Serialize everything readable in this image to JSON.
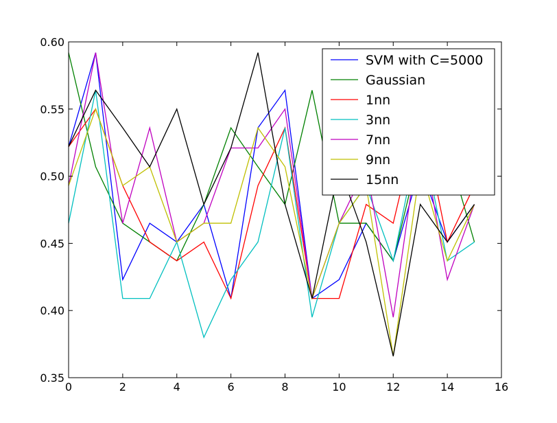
{
  "chart_data": {
    "type": "line",
    "title": "",
    "xlabel": "",
    "ylabel": "",
    "xlim": [
      0,
      16
    ],
    "ylim": [
      0.35,
      0.6
    ],
    "x_ticks": [
      0,
      2,
      4,
      6,
      8,
      10,
      12,
      14,
      16
    ],
    "x_tick_labels": [
      "0",
      "2",
      "4",
      "6",
      "8",
      "10",
      "12",
      "14",
      "16"
    ],
    "y_ticks": [
      0.35,
      0.4,
      0.45,
      0.5,
      0.55,
      0.6
    ],
    "y_tick_labels": [
      "0.35",
      "0.40",
      "0.45",
      "0.50",
      "0.55",
      "0.60"
    ],
    "grid": false,
    "legend_position": "top-right",
    "x": [
      0,
      1,
      2,
      3,
      4,
      5,
      6,
      7,
      8,
      9,
      10,
      11,
      12,
      13,
      14,
      15
    ],
    "series": [
      {
        "name": "SVM with C=5000",
        "color": "#0000ff",
        "values": [
          0.522,
          0.592,
          0.423,
          0.465,
          0.451,
          0.479,
          0.409,
          0.536,
          0.564,
          0.409,
          0.423,
          0.465,
          0.437,
          0.507,
          0.451,
          0.479
        ]
      },
      {
        "name": "Gaussian",
        "color": "#008000",
        "values": [
          0.592,
          0.507,
          0.465,
          0.451,
          0.437,
          0.479,
          0.536,
          0.507,
          0.479,
          0.564,
          0.465,
          0.465,
          0.437,
          0.521,
          0.521,
          0.451
        ]
      },
      {
        "name": "1nn",
        "color": "#ff0000",
        "values": [
          0.522,
          0.55,
          0.493,
          0.451,
          0.437,
          0.451,
          0.409,
          0.493,
          0.536,
          0.409,
          0.409,
          0.479,
          0.465,
          0.55,
          0.451,
          0.493
        ]
      },
      {
        "name": "3nn",
        "color": "#00bfbf",
        "values": [
          0.465,
          0.564,
          0.409,
          0.409,
          0.451,
          0.38,
          0.423,
          0.451,
          0.536,
          0.395,
          0.465,
          0.493,
          0.437,
          0.536,
          0.437,
          0.451
        ]
      },
      {
        "name": "7nn",
        "color": "#bf00bf",
        "values": [
          0.493,
          0.592,
          0.465,
          0.536,
          0.451,
          0.465,
          0.521,
          0.521,
          0.55,
          0.409,
          0.465,
          0.507,
          0.395,
          0.536,
          0.423,
          0.479
        ]
      },
      {
        "name": "9nn",
        "color": "#bfbf00",
        "values": [
          0.493,
          0.55,
          0.493,
          0.507,
          0.451,
          0.465,
          0.465,
          0.536,
          0.507,
          0.409,
          0.465,
          0.493,
          0.366,
          0.507,
          0.437,
          0.479
        ]
      },
      {
        "name": "15nn",
        "color": "#000000",
        "values": [
          0.522,
          0.564,
          0.536,
          0.507,
          0.55,
          0.479,
          0.521,
          0.592,
          0.479,
          0.409,
          0.507,
          0.451,
          0.366,
          0.479,
          0.451,
          0.479
        ]
      }
    ]
  }
}
